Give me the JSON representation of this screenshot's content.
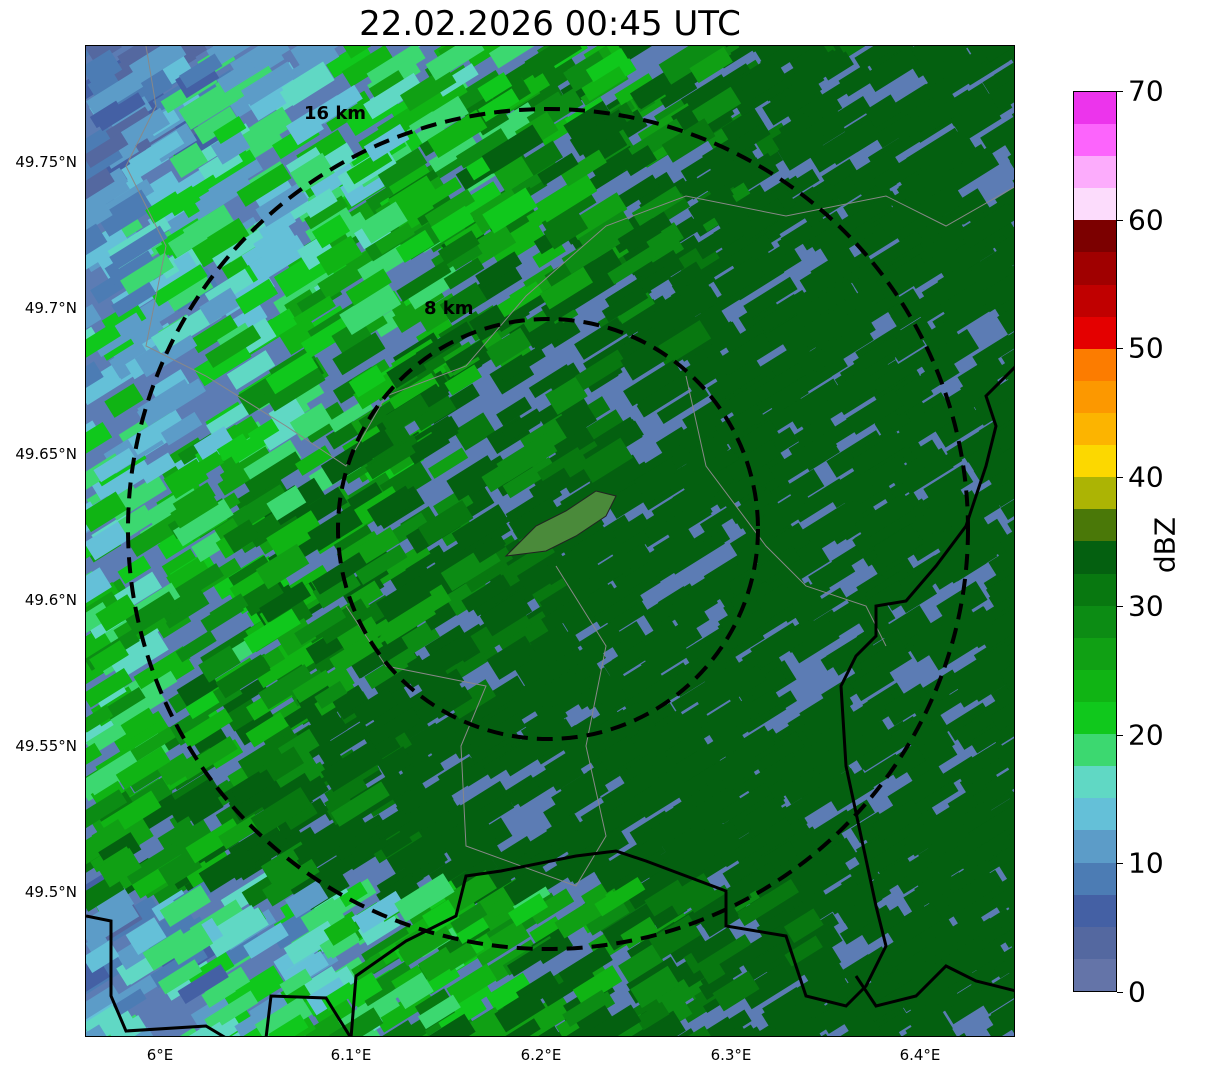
{
  "title": "22.02.2026 00:45 UTC",
  "map": {
    "range_rings": [
      "16 km",
      "8 km"
    ],
    "x_ticks": [
      "6°E",
      "6.1°E",
      "6.2°E",
      "6.3°E",
      "6.4°E"
    ],
    "y_ticks": [
      "49.75°N",
      "49.7°N",
      "49.65°N",
      "49.6°N",
      "49.55°N",
      "49.5°N"
    ]
  },
  "colorbar": {
    "label": "dBZ",
    "ticks": [
      "0",
      "10",
      "20",
      "30",
      "40",
      "50",
      "60",
      "70"
    ],
    "range": [
      0,
      70
    ],
    "colors": [
      "#6474a8",
      "#5468a0",
      "#4460a4",
      "#4c7cb4",
      "#5c9cc8",
      "#64c0d8",
      "#60d8c4",
      "#3cd870",
      "#10c81c",
      "#10b414",
      "#10a014",
      "#0c8c14",
      "#087810",
      "#046010",
      "#4a7808",
      "#acb404",
      "#fcd800",
      "#fcb400",
      "#fc9800",
      "#fc7c00",
      "#e40000",
      "#c00000",
      "#a00000",
      "#7c0000",
      "#fcdcfc",
      "#fcacfc",
      "#fc64fc",
      "#ec34ec"
    ]
  }
}
